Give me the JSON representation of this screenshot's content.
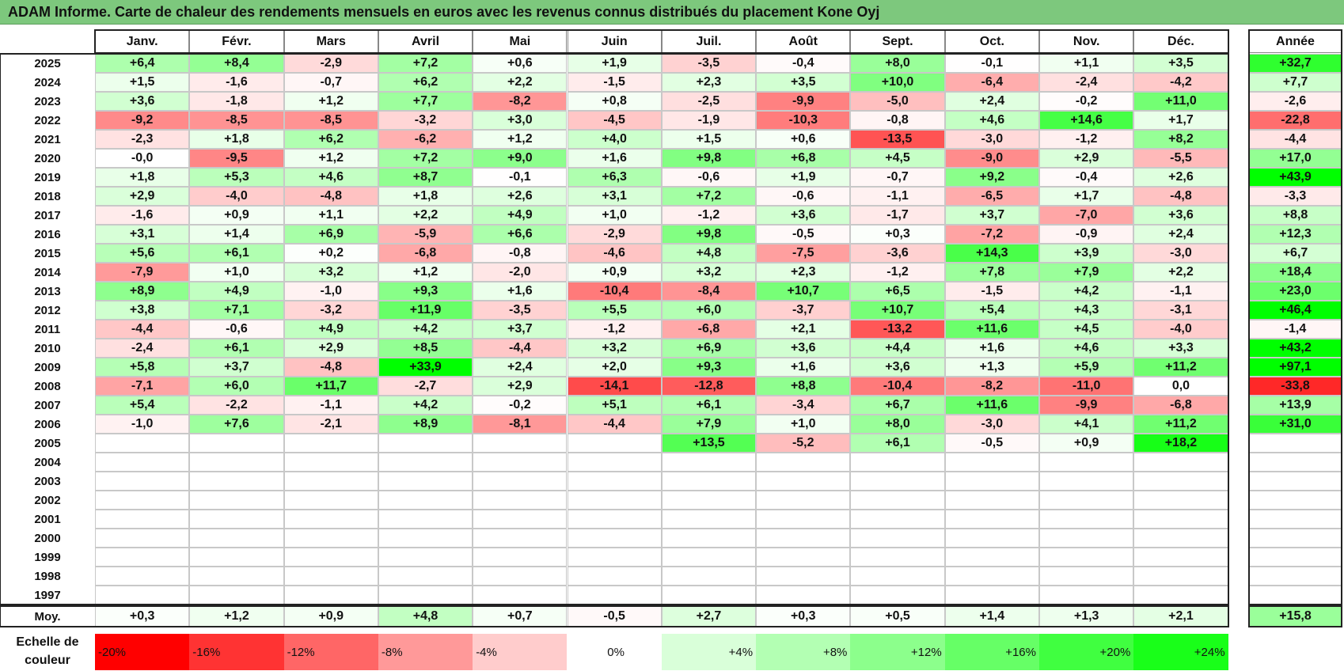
{
  "title": "ADAM Informe. Carte de chaleur des rendements mensuels en euros avec les revenus connus distribués du placement Kone Oyj",
  "chart_data": {
    "type": "heatmap",
    "title": "ADAM Informe. Carte de chaleur des rendements mensuels en euros avec les revenus connus distribués du placement Kone Oyj",
    "months": [
      "Janv.",
      "Févr.",
      "Mars",
      "Avril",
      "Mai",
      "Juin",
      "Juil.",
      "Août",
      "Sept.",
      "Oct.",
      "Nov.",
      "Déc."
    ],
    "year_header": "Année",
    "rows": [
      {
        "year": "2025",
        "values": [
          "+6,4",
          "+8,4",
          "-2,9",
          "+7,2",
          "+0,6",
          "+1,9",
          "-3,5",
          "-0,4",
          "+8,0",
          "-0,1",
          "+1,1",
          "+3,5"
        ],
        "annual": "+32,7"
      },
      {
        "year": "2024",
        "values": [
          "+1,5",
          "-1,6",
          "-0,7",
          "+6,2",
          "+2,2",
          "-1,5",
          "+2,3",
          "+3,5",
          "+10,0",
          "-6,4",
          "-2,4",
          "-4,2"
        ],
        "annual": "+7,7"
      },
      {
        "year": "2023",
        "values": [
          "+3,6",
          "-1,8",
          "+1,2",
          "+7,7",
          "-8,2",
          "+0,8",
          "-2,5",
          "-9,9",
          "-5,0",
          "+2,4",
          "-0,2",
          "+11,0"
        ],
        "annual": "-2,6"
      },
      {
        "year": "2022",
        "values": [
          "-9,2",
          "-8,5",
          "-8,5",
          "-3,2",
          "+3,0",
          "-4,5",
          "-1,9",
          "-10,3",
          "-0,8",
          "+4,6",
          "+14,6",
          "+1,7"
        ],
        "annual": "-22,8"
      },
      {
        "year": "2021",
        "values": [
          "-2,3",
          "+1,8",
          "+6,2",
          "-6,2",
          "+1,2",
          "+4,0",
          "+1,5",
          "+0,6",
          "-13,5",
          "-3,0",
          "-1,2",
          "+8,2"
        ],
        "annual": "-4,4"
      },
      {
        "year": "2020",
        "values": [
          "-0,0",
          "-9,5",
          "+1,2",
          "+7,2",
          "+9,0",
          "+1,6",
          "+9,8",
          "+6,8",
          "+4,5",
          "-9,0",
          "+2,9",
          "-5,5"
        ],
        "annual": "+17,0"
      },
      {
        "year": "2019",
        "values": [
          "+1,8",
          "+5,3",
          "+4,6",
          "+8,7",
          "-0,1",
          "+6,3",
          "-0,6",
          "+1,9",
          "-0,7",
          "+9,2",
          "-0,4",
          "+2,6"
        ],
        "annual": "+43,9"
      },
      {
        "year": "2018",
        "values": [
          "+2,9",
          "-4,0",
          "-4,8",
          "+1,8",
          "+2,6",
          "+3,1",
          "+7,2",
          "-0,6",
          "-1,1",
          "-6,5",
          "+1,7",
          "-4,8"
        ],
        "annual": "-3,3"
      },
      {
        "year": "2017",
        "values": [
          "-1,6",
          "+0,9",
          "+1,1",
          "+2,2",
          "+4,9",
          "+1,0",
          "-1,2",
          "+3,6",
          "-1,7",
          "+3,7",
          "-7,0",
          "+3,6"
        ],
        "annual": "+8,8"
      },
      {
        "year": "2016",
        "values": [
          "+3,1",
          "+1,4",
          "+6,9",
          "-5,9",
          "+6,6",
          "-2,9",
          "+9,8",
          "-0,5",
          "+0,3",
          "-7,2",
          "-0,9",
          "+2,4"
        ],
        "annual": "+12,3"
      },
      {
        "year": "2015",
        "values": [
          "+5,6",
          "+6,1",
          "+0,2",
          "-6,8",
          "-0,8",
          "-4,6",
          "+4,8",
          "-7,5",
          "-3,6",
          "+14,3",
          "+3,9",
          "-3,0"
        ],
        "annual": "+6,7"
      },
      {
        "year": "2014",
        "values": [
          "-7,9",
          "+1,0",
          "+3,2",
          "+1,2",
          "-2,0",
          "+0,9",
          "+3,2",
          "+2,3",
          "-1,2",
          "+7,8",
          "+7,9",
          "+2,2"
        ],
        "annual": "+18,4"
      },
      {
        "year": "2013",
        "values": [
          "+8,9",
          "+4,9",
          "-1,0",
          "+9,3",
          "+1,6",
          "-10,4",
          "-8,4",
          "+10,7",
          "+6,5",
          "-1,5",
          "+4,2",
          "-1,1"
        ],
        "annual": "+23,0"
      },
      {
        "year": "2012",
        "values": [
          "+3,8",
          "+7,1",
          "-3,2",
          "+11,9",
          "-3,5",
          "+5,5",
          "+6,0",
          "-3,7",
          "+10,7",
          "+5,4",
          "+4,3",
          "-3,1"
        ],
        "annual": "+46,4"
      },
      {
        "year": "2011",
        "values": [
          "-4,4",
          "-0,6",
          "+4,9",
          "+4,2",
          "+3,7",
          "-1,2",
          "-6,8",
          "+2,1",
          "-13,2",
          "+11,6",
          "+4,5",
          "-4,0"
        ],
        "annual": "-1,4"
      },
      {
        "year": "2010",
        "values": [
          "-2,4",
          "+6,1",
          "+2,9",
          "+8,5",
          "-4,4",
          "+3,2",
          "+6,9",
          "+3,6",
          "+4,4",
          "+1,6",
          "+4,6",
          "+3,3"
        ],
        "annual": "+43,2"
      },
      {
        "year": "2009",
        "values": [
          "+5,8",
          "+3,7",
          "-4,8",
          "+33,9",
          "+2,4",
          "+2,0",
          "+9,3",
          "+1,6",
          "+3,6",
          "+1,3",
          "+5,9",
          "+11,2"
        ],
        "annual": "+97,1"
      },
      {
        "year": "2008",
        "values": [
          "-7,1",
          "+6,0",
          "+11,7",
          "-2,7",
          "+2,9",
          "-14,1",
          "-12,8",
          "+8,8",
          "-10,4",
          "-8,2",
          "-11,0",
          "0,0"
        ],
        "annual": "-33,8"
      },
      {
        "year": "2007",
        "values": [
          "+5,4",
          "-2,2",
          "-1,1",
          "+4,2",
          "-0,2",
          "+5,1",
          "+6,1",
          "-3,4",
          "+6,7",
          "+11,6",
          "-9,9",
          "-6,8"
        ],
        "annual": "+13,9"
      },
      {
        "year": "2006",
        "values": [
          "-1,0",
          "+7,6",
          "-2,1",
          "+8,9",
          "-8,1",
          "-4,4",
          "+7,9",
          "+1,0",
          "+8,0",
          "-3,0",
          "+4,1",
          "+11,2"
        ],
        "annual": "+31,0"
      },
      {
        "year": "2005",
        "values": [
          "",
          "",
          "",
          "",
          "",
          "",
          "+13,5",
          "-5,2",
          "+6,1",
          "-0,5",
          "+0,9",
          "+18,2"
        ],
        "annual": ""
      },
      {
        "year": "2004",
        "values": [
          "",
          "",
          "",
          "",
          "",
          "",
          "",
          "",
          "",
          "",
          "",
          ""
        ],
        "annual": ""
      },
      {
        "year": "2003",
        "values": [
          "",
          "",
          "",
          "",
          "",
          "",
          "",
          "",
          "",
          "",
          "",
          ""
        ],
        "annual": ""
      },
      {
        "year": "2002",
        "values": [
          "",
          "",
          "",
          "",
          "",
          "",
          "",
          "",
          "",
          "",
          "",
          ""
        ],
        "annual": ""
      },
      {
        "year": "2001",
        "values": [
          "",
          "",
          "",
          "",
          "",
          "",
          "",
          "",
          "",
          "",
          "",
          ""
        ],
        "annual": ""
      },
      {
        "year": "2000",
        "values": [
          "",
          "",
          "",
          "",
          "",
          "",
          "",
          "",
          "",
          "",
          "",
          ""
        ],
        "annual": ""
      },
      {
        "year": "1999",
        "values": [
          "",
          "",
          "",
          "",
          "",
          "",
          "",
          "",
          "",
          "",
          "",
          ""
        ],
        "annual": ""
      },
      {
        "year": "1998",
        "values": [
          "",
          "",
          "",
          "",
          "",
          "",
          "",
          "",
          "",
          "",
          "",
          ""
        ],
        "annual": ""
      },
      {
        "year": "1997",
        "values": [
          "",
          "",
          "",
          "",
          "",
          "",
          "",
          "",
          "",
          "",
          "",
          ""
        ],
        "annual": ""
      }
    ],
    "average": {
      "label": "Moy.",
      "values": [
        "+0,3",
        "+1,2",
        "+0,9",
        "+4,8",
        "+0,7",
        "-0,5",
        "+2,7",
        "+0,3",
        "+0,5",
        "+1,4",
        "+1,3",
        "+2,1"
      ],
      "annual": "+15,8"
    },
    "color_scale": {
      "label": "Echelle de couleur",
      "steps": [
        {
          "label": "-20%",
          "value": -20,
          "color": "#ff0000"
        },
        {
          "label": "-16%",
          "value": -16,
          "color": "#ff3333"
        },
        {
          "label": "-12%",
          "value": -12,
          "color": "#ff6666"
        },
        {
          "label": "-8%",
          "value": -8,
          "color": "#ff9999"
        },
        {
          "label": "-4%",
          "value": -4,
          "color": "#ffcccc"
        },
        {
          "label": "0%",
          "value": 0,
          "color": "#ffffff"
        },
        {
          "label": "+4%",
          "value": 4,
          "color": "#d9ffd9"
        },
        {
          "label": "+8%",
          "value": 8,
          "color": "#b3ffb3"
        },
        {
          "label": "+12%",
          "value": 12,
          "color": "#8cff8c"
        },
        {
          "label": "+16%",
          "value": 16,
          "color": "#66ff66"
        },
        {
          "label": "+20%",
          "value": 20,
          "color": "#40ff40"
        },
        {
          "label": "+24%",
          "value": 24,
          "color": "#19ff19"
        }
      ]
    }
  }
}
